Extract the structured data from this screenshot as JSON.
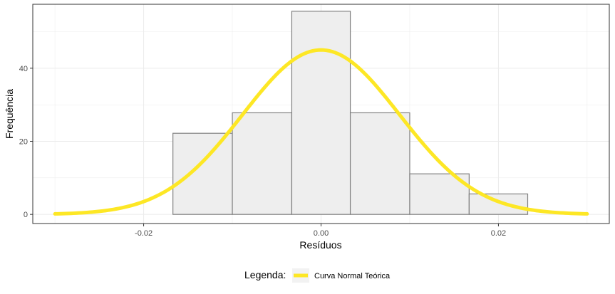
{
  "chart_data": {
    "type": "bar",
    "title": "",
    "xlabel": "Resíduos",
    "ylabel": "Frequência",
    "xlim": [
      -0.0325,
      0.0325
    ],
    "ylim": [
      -2.5,
      57.5
    ],
    "x_ticks": [
      -0.02,
      0.0,
      0.02
    ],
    "x_tick_labels": [
      "-0.02",
      "0.00",
      "0.02"
    ],
    "y_ticks": [
      0,
      20,
      40
    ],
    "y_tick_labels": [
      "0",
      "20",
      "40"
    ],
    "grid": true,
    "legend_position": "bottom",
    "bins": [
      {
        "x0": -0.0167,
        "x1": -0.01,
        "count": 22.2
      },
      {
        "x0": -0.01,
        "x1": -0.0033,
        "count": 27.8
      },
      {
        "x0": -0.0033,
        "x1": 0.0033,
        "count": 55.6
      },
      {
        "x0": 0.0033,
        "x1": 0.01,
        "count": 27.8
      },
      {
        "x0": 0.01,
        "x1": 0.0167,
        "count": 11.1
      },
      {
        "x0": 0.0167,
        "x1": 0.0233,
        "count": 5.6
      }
    ],
    "curve": {
      "mean": 0.0,
      "sd": 0.00885,
      "peak": 45.0,
      "x_range": [
        -0.03,
        0.03
      ]
    },
    "colors": {
      "bar_fill": "#eeeeee",
      "bar_stroke": "#808080",
      "curve": "#fde725",
      "grid": "#ebebeb",
      "panel_border": "#333333"
    },
    "legend": {
      "title": "Legenda:",
      "entries": [
        {
          "label": "Curva Normal Teórica",
          "color": "#fde725"
        }
      ]
    }
  }
}
